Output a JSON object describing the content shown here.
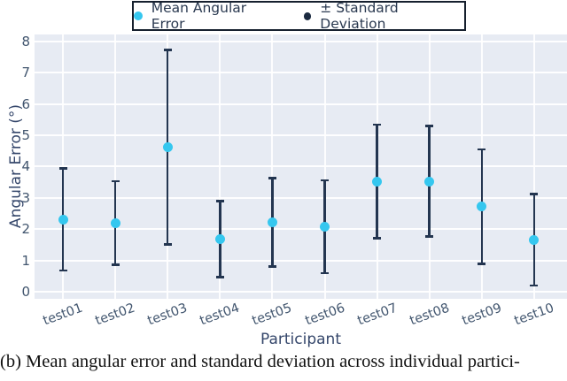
{
  "chart_data": {
    "type": "scatter",
    "subtype": "errorbar",
    "title": "",
    "categories": [
      "test01",
      "test02",
      "test03",
      "test04",
      "test05",
      "test06",
      "test07",
      "test08",
      "test09",
      "test10"
    ],
    "series": [
      {
        "name": "Mean Angular Error",
        "role": "mean",
        "values": [
          2.31,
          2.2,
          4.62,
          1.68,
          2.22,
          2.08,
          3.52,
          3.53,
          2.72,
          1.66
        ]
      },
      {
        "name": "± Standard Deviation",
        "role": "std",
        "values": [
          1.67,
          1.37,
          3.14,
          1.25,
          1.45,
          1.52,
          1.85,
          1.8,
          1.86,
          1.5
        ]
      }
    ],
    "xlabel": "Participant",
    "ylabel": "Angular Error (°)",
    "ylim": [
      0,
      8
    ],
    "yticks": [
      0,
      1,
      2,
      3,
      4,
      5,
      6,
      7,
      8
    ],
    "grid": true,
    "legend_position": "top-center"
  },
  "colors": {
    "mean_marker": "#35c7ef",
    "std_bar": "#233550",
    "legend_std_dot": "#1b2a40",
    "plot_background": "#e7ebf3",
    "gridline": "#ffffff",
    "tick_text": "#42566f",
    "axis_label_text": "#35476b",
    "legend_border": "#16202e"
  },
  "caption": {
    "text": "(b) Mean angular error and standard deviation across individual partici-"
  }
}
